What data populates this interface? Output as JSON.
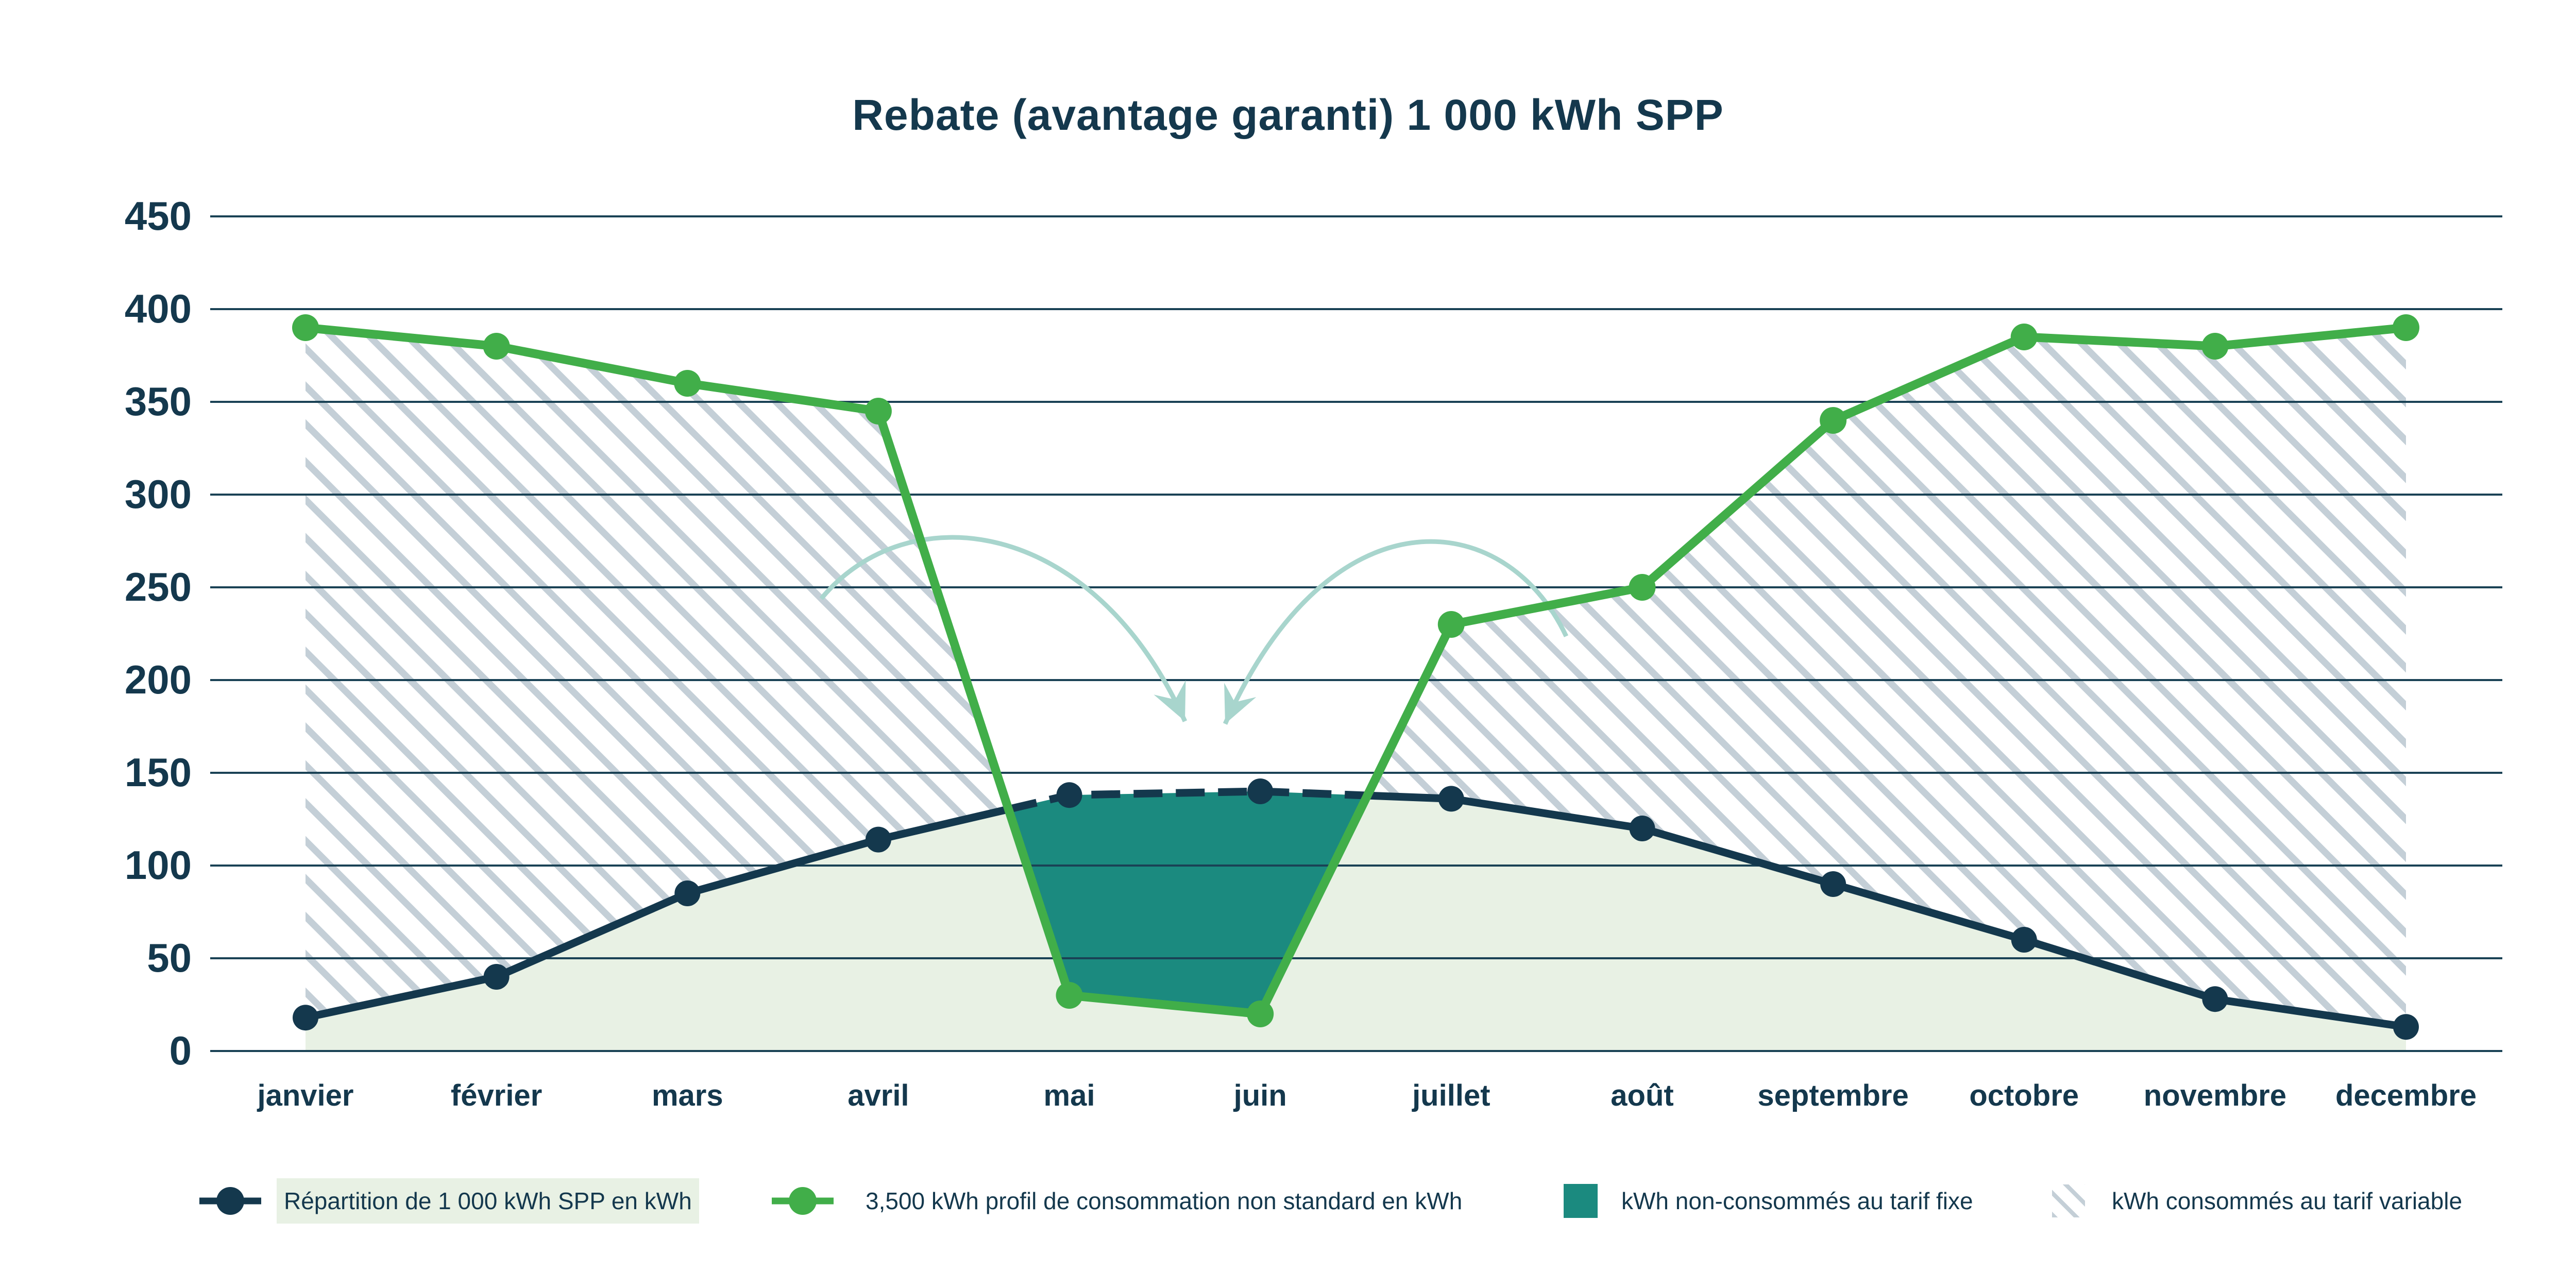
{
  "page": {
    "background": "#ffffff"
  },
  "chart_data": {
    "type": "line",
    "title": "Rebate (avantage garanti) 1 000 kWh SPP",
    "categories": [
      "janvier",
      "février",
      "mars",
      "avril",
      "mai",
      "juin",
      "juillet",
      "août",
      "septembre",
      "octobre",
      "novembre",
      "decembre"
    ],
    "y_ticks": [
      0,
      50,
      100,
      150,
      200,
      250,
      300,
      350,
      400,
      450
    ],
    "ylim": [
      0,
      450
    ],
    "grid": "horizontal",
    "legend_position": "bottom",
    "axis_color": "#14384d",
    "grid_color": "#1a4255",
    "series": [
      {
        "name": "Répartition de 1 000 kWh SPP en kWh",
        "color": "#14384d",
        "marker": "dot",
        "line_style": "solid, dashed where consumption is below SPP (mai–juin)",
        "values": [
          18,
          40,
          85,
          114,
          138,
          140,
          136,
          120,
          90,
          60,
          28,
          13
        ],
        "area_fill": "#e8f1e4"
      },
      {
        "name": "3,500 kWh profil de consommation non standard en kWh",
        "color": "#41ae49",
        "marker": "dot",
        "line_style": "solid",
        "values": [
          390,
          380,
          360,
          345,
          30,
          20,
          230,
          250,
          340,
          385,
          380,
          390
        ]
      }
    ],
    "regions": [
      {
        "name": "kWh non-consommés au tarif fixe",
        "fill": "#1b8a7f",
        "meaning": "area between SPP line (top) and consumption line (bottom), mai–juin"
      },
      {
        "name": "kWh consommés au tarif variable",
        "fill": "hatch",
        "hatch_color": "#c4cfd7",
        "meaning": "hatched area between consumption line (top) and SPP line (bottom)"
      }
    ],
    "annotation_arrows": {
      "color": "#a8d5cd",
      "count": 2,
      "meaning": "curved arrows pointing from the hatched consumption areas into the teal non-consumed area"
    }
  }
}
